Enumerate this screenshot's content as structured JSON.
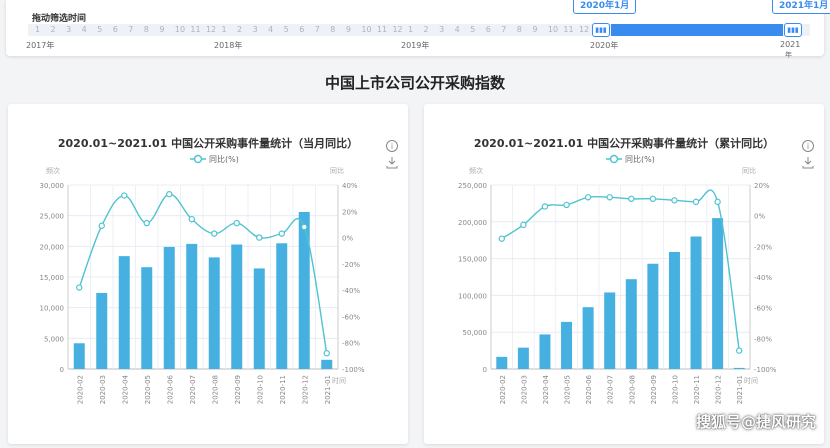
{
  "slider": {
    "title": "拖动筛选时间",
    "months": [
      "1",
      "2",
      "3",
      "4",
      "5",
      "6",
      "7",
      "8",
      "9",
      "10",
      "11",
      "12"
    ],
    "years": [
      "2017年",
      "2018年",
      "2019年",
      "2020年",
      "2021"
    ],
    "year_suffix": "年",
    "range_start_label": "2020年1月",
    "range_end_label": "2021年1月",
    "handle_glyph": "▮▮▮"
  },
  "page_title": "中国上市公司公开采购指数",
  "colors": {
    "bar": "#46b1e1",
    "line": "#4fc3d0",
    "axis": "#999999",
    "grid": "#e8ecf2",
    "accent": "#3a8bef"
  },
  "icons": {
    "info": "info-icon",
    "download": "download-icon"
  },
  "watermark": "搜狐号@捷风研究",
  "chart_data": [
    {
      "type": "bar",
      "title": "2020.01~2021.01 中国公开采购事件量统计（当月同比）",
      "legend": "同比(%)",
      "legend_position": "top-center",
      "ylabel_left": "频次",
      "ylabel_right": "同比",
      "xlabel": "时间",
      "grid": true,
      "categories": [
        "2020-02",
        "2020-03",
        "2020-04",
        "2020-05",
        "2020-06",
        "2020-07",
        "2020-08",
        "2020-09",
        "2020-10",
        "2020-11",
        "2020-12",
        "2021-01"
      ],
      "ylim_left": [
        0,
        30000
      ],
      "yticks_left": [
        "0",
        "5,000",
        "10,000",
        "15,000",
        "20,000",
        "25,000",
        "30,000"
      ],
      "ylim_right": [
        -100,
        40
      ],
      "yticks_right": [
        "-100%",
        "-80%",
        "-60%",
        "-40%",
        "-20%",
        "0%",
        "20%",
        "40%"
      ],
      "series": [
        {
          "name": "频次",
          "type": "bar",
          "values": [
            4200,
            12400,
            18400,
            16600,
            19900,
            20400,
            18200,
            20300,
            16400,
            20500,
            25600,
            1500
          ]
        },
        {
          "name": "同比(%)",
          "type": "line",
          "axis": "right",
          "values": [
            -38,
            9,
            32,
            11,
            33,
            14,
            3,
            11,
            0,
            3,
            8,
            -88
          ]
        }
      ]
    },
    {
      "type": "bar",
      "title": "2020.01~2021.01 中国公开采购事件量统计（累计同比）",
      "legend": "同比(%)",
      "legend_position": "top-center",
      "ylabel_left": "频次",
      "ylabel_right": "同比",
      "xlabel": "时间",
      "grid": true,
      "categories": [
        "2020-02",
        "2020-03",
        "2020-04",
        "2020-05",
        "2020-06",
        "2020-07",
        "2020-08",
        "2020-09",
        "2020-10",
        "2020-11",
        "2020-12",
        "2021-01"
      ],
      "ylim_left": [
        0,
        250000
      ],
      "yticks_left": [
        "0",
        "50,000",
        "100,000",
        "150,000",
        "200,000",
        "250,000"
      ],
      "ylim_right": [
        -100,
        20
      ],
      "yticks_right": [
        "-100%",
        "-80%",
        "-60%",
        "-40%",
        "-20%",
        "0%",
        "20%"
      ],
      "series": [
        {
          "name": "频次",
          "type": "bar",
          "values": [
            16500,
            29000,
            47000,
            64000,
            84000,
            104000,
            122000,
            143000,
            159000,
            180000,
            205000,
            1500
          ]
        },
        {
          "name": "同比(%)",
          "type": "line",
          "axis": "right",
          "values": [
            -15,
            -6,
            6,
            7,
            12,
            12,
            11,
            11,
            10,
            9,
            9,
            -88
          ]
        }
      ]
    }
  ]
}
